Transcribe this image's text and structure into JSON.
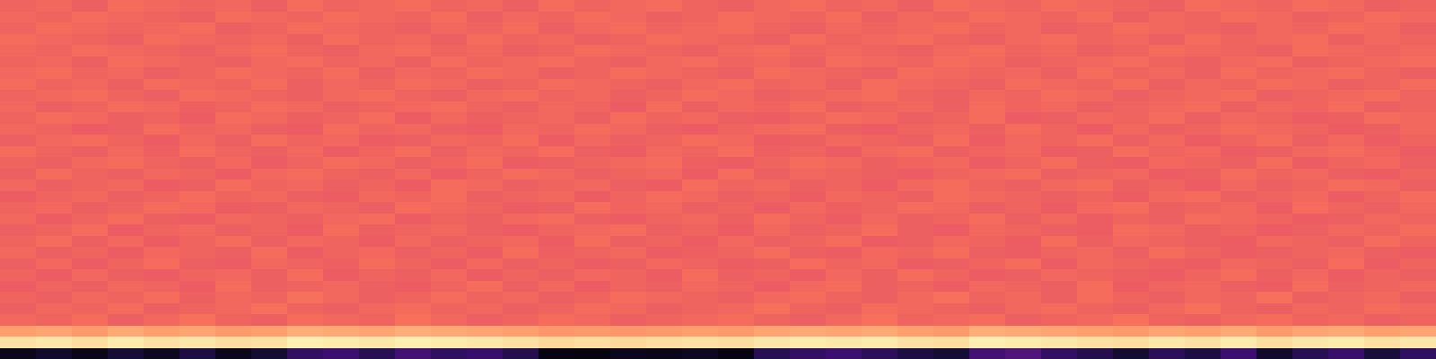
{
  "chart_data": {
    "type": "heatmap",
    "tick_labels": false,
    "zlim": [
      0,
      1
    ],
    "cells": [
      [
        0.05,
        0.08,
        0.04,
        0.1,
        0.06,
        0.12,
        0.05,
        0.09,
        0.18,
        0.2,
        0.15,
        0.22,
        0.17,
        0.19,
        0.14,
        0.03,
        0.02,
        0.05,
        0.04,
        0.06,
        0.03,
        0.15,
        0.18,
        0.2,
        0.16,
        0.12,
        0.1,
        0.22,
        0.25,
        0.18,
        0.14,
        0.09,
        0.16,
        0.12,
        0.2,
        0.08,
        0.15,
        0.19,
        0.11,
        0.17
      ],
      [
        0.94,
        0.95,
        0.93,
        0.96,
        0.94,
        0.95,
        0.93,
        0.94,
        0.97,
        0.96,
        0.95,
        0.97,
        0.96,
        0.95,
        0.94,
        0.92,
        0.93,
        0.92,
        0.93,
        0.94,
        0.93,
        0.95,
        0.96,
        0.95,
        0.96,
        0.94,
        0.93,
        0.97,
        0.96,
        0.95,
        0.94,
        0.93,
        0.95,
        0.94,
        0.96,
        0.93,
        0.95,
        0.96,
        0.94,
        0.95
      ],
      [
        0.8,
        0.81,
        0.79,
        0.82,
        0.8,
        0.81,
        0.79,
        0.8,
        0.83,
        0.82,
        0.81,
        0.83,
        0.82,
        0.81,
        0.8,
        0.78,
        0.79,
        0.78,
        0.79,
        0.8,
        0.79,
        0.81,
        0.82,
        0.81,
        0.82,
        0.8,
        0.79,
        0.83,
        0.82,
        0.81,
        0.8,
        0.79,
        0.81,
        0.8,
        0.82,
        0.79,
        0.81,
        0.82,
        0.8,
        0.81
      ],
      [
        0.68,
        0.67,
        0.69,
        0.66,
        0.68,
        0.7,
        0.67,
        0.66,
        0.69,
        0.68,
        0.67,
        0.7,
        0.68,
        0.66,
        0.67,
        0.69,
        0.68,
        0.66,
        0.67,
        0.68,
        0.69,
        0.67,
        0.66,
        0.68,
        0.7,
        0.67,
        0.68,
        0.69,
        0.66,
        0.67,
        0.68,
        0.7,
        0.67,
        0.66,
        0.68,
        0.69,
        0.67,
        0.68,
        0.66,
        0.67
      ],
      [
        0.66,
        0.68,
        0.67,
        0.69,
        0.66,
        0.67,
        0.68,
        0.7,
        0.67,
        0.66,
        0.68,
        0.69,
        0.67,
        0.68,
        0.66,
        0.67,
        0.69,
        0.68,
        0.66,
        0.67,
        0.68,
        0.7,
        0.67,
        0.66,
        0.69,
        0.68,
        0.67,
        0.66,
        0.68,
        0.69,
        0.67,
        0.66,
        0.68,
        0.7,
        0.67,
        0.66,
        0.68,
        0.67,
        0.69,
        0.68
      ],
      [
        0.67,
        0.66,
        0.68,
        0.67,
        0.69,
        0.66,
        0.68,
        0.67,
        0.7,
        0.68,
        0.66,
        0.67,
        0.69,
        0.67,
        0.68,
        0.66,
        0.67,
        0.69,
        0.68,
        0.67,
        0.66,
        0.68,
        0.69,
        0.67,
        0.66,
        0.68,
        0.7,
        0.67,
        0.68,
        0.66,
        0.69,
        0.67,
        0.66,
        0.68,
        0.67,
        0.7,
        0.66,
        0.67,
        0.68,
        0.66
      ],
      [
        0.65,
        0.67,
        0.66,
        0.68,
        0.67,
        0.65,
        0.69,
        0.66,
        0.67,
        0.68,
        0.66,
        0.65,
        0.67,
        0.69,
        0.66,
        0.68,
        0.65,
        0.67,
        0.66,
        0.68,
        0.67,
        0.65,
        0.68,
        0.69,
        0.66,
        0.67,
        0.65,
        0.68,
        0.67,
        0.66,
        0.69,
        0.65,
        0.67,
        0.68,
        0.66,
        0.65,
        0.69,
        0.66,
        0.67,
        0.68
      ],
      [
        0.67,
        0.65,
        0.68,
        0.66,
        0.65,
        0.67,
        0.68,
        0.66,
        0.69,
        0.65,
        0.67,
        0.66,
        0.68,
        0.65,
        0.67,
        0.66,
        0.68,
        0.67,
        0.65,
        0.69,
        0.66,
        0.67,
        0.65,
        0.68,
        0.66,
        0.69,
        0.67,
        0.65,
        0.66,
        0.68,
        0.67,
        0.66,
        0.65,
        0.67,
        0.69,
        0.66,
        0.68,
        0.65,
        0.67,
        0.66
      ],
      [
        0.66,
        0.68,
        0.65,
        0.67,
        0.69,
        0.66,
        0.65,
        0.68,
        0.67,
        0.66,
        0.69,
        0.67,
        0.65,
        0.68,
        0.66,
        0.67,
        0.65,
        0.66,
        0.68,
        0.67,
        0.65,
        0.66,
        0.69,
        0.67,
        0.68,
        0.65,
        0.66,
        0.67,
        0.69,
        0.65,
        0.68,
        0.67,
        0.66,
        0.65,
        0.68,
        0.67,
        0.66,
        0.69,
        0.65,
        0.67
      ],
      [
        0.68,
        0.66,
        0.67,
        0.65,
        0.68,
        0.67,
        0.66,
        0.69,
        0.65,
        0.67,
        0.68,
        0.66,
        0.67,
        0.65,
        0.69,
        0.66,
        0.67,
        0.68,
        0.65,
        0.66,
        0.67,
        0.69,
        0.66,
        0.65,
        0.68,
        0.67,
        0.69,
        0.66,
        0.65,
        0.67,
        0.68,
        0.66,
        0.69,
        0.67,
        0.65,
        0.66,
        0.67,
        0.68,
        0.66,
        0.65
      ],
      [
        0.67,
        0.69,
        0.66,
        0.68,
        0.65,
        0.67,
        0.69,
        0.66,
        0.68,
        0.67,
        0.65,
        0.68,
        0.66,
        0.67,
        0.68,
        0.65,
        0.69,
        0.66,
        0.67,
        0.65,
        0.68,
        0.66,
        0.67,
        0.69,
        0.65,
        0.66,
        0.68,
        0.67,
        0.65,
        0.69,
        0.66,
        0.68,
        0.67,
        0.66,
        0.65,
        0.68,
        0.67,
        0.66,
        0.69,
        0.67
      ],
      [
        0.66,
        0.67,
        0.69,
        0.65,
        0.67,
        0.68,
        0.66,
        0.67,
        0.65,
        0.69,
        0.66,
        0.67,
        0.68,
        0.66,
        0.65,
        0.67,
        0.68,
        0.69,
        0.66,
        0.67,
        0.65,
        0.68,
        0.66,
        0.67,
        0.69,
        0.66,
        0.65,
        0.68,
        0.67,
        0.66,
        0.65,
        0.69,
        0.68,
        0.66,
        0.67,
        0.65,
        0.66,
        0.68,
        0.67,
        0.69
      ],
      [
        0.68,
        0.65,
        0.67,
        0.69,
        0.66,
        0.65,
        0.68,
        0.67,
        0.66,
        0.68,
        0.69,
        0.65,
        0.67,
        0.66,
        0.68,
        0.69,
        0.66,
        0.65,
        0.67,
        0.68,
        0.66,
        0.69,
        0.67,
        0.65,
        0.68,
        0.66,
        0.67,
        0.69,
        0.66,
        0.68,
        0.65,
        0.67,
        0.66,
        0.69,
        0.68,
        0.67,
        0.65,
        0.66,
        0.68,
        0.67
      ],
      [
        0.67,
        0.68,
        0.66,
        0.67,
        0.69,
        0.68,
        0.65,
        0.66,
        0.68,
        0.67,
        0.66,
        0.69,
        0.68,
        0.67,
        0.65,
        0.66,
        0.69,
        0.67,
        0.68,
        0.66,
        0.67,
        0.65,
        0.68,
        0.66,
        0.67,
        0.69,
        0.68,
        0.66,
        0.67,
        0.65,
        0.68,
        0.69,
        0.66,
        0.67,
        0.68,
        0.65,
        0.69,
        0.67,
        0.66,
        0.68
      ],
      [
        0.65,
        0.67,
        0.68,
        0.66,
        0.67,
        0.69,
        0.67,
        0.68,
        0.66,
        0.65,
        0.68,
        0.67,
        0.69,
        0.66,
        0.67,
        0.68,
        0.65,
        0.67,
        0.69,
        0.68,
        0.66,
        0.67,
        0.65,
        0.68,
        0.67,
        0.66,
        0.69,
        0.68,
        0.67,
        0.66,
        0.67,
        0.65,
        0.68,
        0.69,
        0.66,
        0.67,
        0.68,
        0.65,
        0.67,
        0.69
      ],
      [
        0.68,
        0.66,
        0.67,
        0.68,
        0.65,
        0.66,
        0.69,
        0.67,
        0.68,
        0.66,
        0.67,
        0.65,
        0.69,
        0.68,
        0.66,
        0.67,
        0.68,
        0.66,
        0.65,
        0.69,
        0.67,
        0.68,
        0.66,
        0.67,
        0.65,
        0.68,
        0.69,
        0.67,
        0.66,
        0.68,
        0.69,
        0.66,
        0.67,
        0.65,
        0.68,
        0.66,
        0.67,
        0.69,
        0.68,
        0.66
      ],
      [
        0.66,
        0.69,
        0.67,
        0.66,
        0.68,
        0.67,
        0.65,
        0.68,
        0.69,
        0.67,
        0.66,
        0.68,
        0.65,
        0.67,
        0.69,
        0.68,
        0.66,
        0.67,
        0.68,
        0.65,
        0.69,
        0.66,
        0.68,
        0.67,
        0.66,
        0.65,
        0.67,
        0.68,
        0.69,
        0.66,
        0.67,
        0.68,
        0.65,
        0.66,
        0.69,
        0.67,
        0.68,
        0.66,
        0.65,
        0.67
      ],
      [
        0.67,
        0.66,
        0.68,
        0.69,
        0.67,
        0.66,
        0.68,
        0.65,
        0.67,
        0.69,
        0.68,
        0.66,
        0.67,
        0.69,
        0.65,
        0.66,
        0.67,
        0.68,
        0.69,
        0.66,
        0.65,
        0.67,
        0.69,
        0.68,
        0.66,
        0.67,
        0.68,
        0.65,
        0.67,
        0.69,
        0.66,
        0.65,
        0.68,
        0.67,
        0.66,
        0.69,
        0.65,
        0.67,
        0.68,
        0.66
      ],
      [
        0.69,
        0.67,
        0.66,
        0.68,
        0.66,
        0.69,
        0.67,
        0.66,
        0.68,
        0.65,
        0.67,
        0.69,
        0.66,
        0.68,
        0.67,
        0.69,
        0.66,
        0.65,
        0.68,
        0.67,
        0.69,
        0.66,
        0.67,
        0.65,
        0.68,
        0.69,
        0.66,
        0.67,
        0.68,
        0.65,
        0.66,
        0.69,
        0.67,
        0.68,
        0.65,
        0.66,
        0.68,
        0.69,
        0.67,
        0.65
      ],
      [
        0.66,
        0.68,
        0.69,
        0.67,
        0.65,
        0.68,
        0.66,
        0.69,
        0.67,
        0.68,
        0.65,
        0.66,
        0.68,
        0.67,
        0.69,
        0.65,
        0.68,
        0.66,
        0.67,
        0.69,
        0.68,
        0.65,
        0.66,
        0.68,
        0.67,
        0.66,
        0.69,
        0.65,
        0.68,
        0.67,
        0.69,
        0.66,
        0.68,
        0.65,
        0.67,
        0.69,
        0.66,
        0.68,
        0.65,
        0.67
      ],
      [
        0.68,
        0.67,
        0.65,
        0.66,
        0.69,
        0.67,
        0.68,
        0.66,
        0.65,
        0.69,
        0.67,
        0.68,
        0.66,
        0.65,
        0.68,
        0.67,
        0.69,
        0.68,
        0.66,
        0.65,
        0.67,
        0.68,
        0.69,
        0.66,
        0.65,
        0.67,
        0.68,
        0.66,
        0.69,
        0.67,
        0.65,
        0.68,
        0.66,
        0.67,
        0.69,
        0.68,
        0.67,
        0.65,
        0.66,
        0.68
      ],
      [
        0.67,
        0.69,
        0.68,
        0.66,
        0.67,
        0.65,
        0.69,
        0.68,
        0.66,
        0.67,
        0.69,
        0.65,
        0.68,
        0.66,
        0.67,
        0.68,
        0.66,
        0.69,
        0.67,
        0.68,
        0.66,
        0.65,
        0.67,
        0.69,
        0.68,
        0.66,
        0.67,
        0.69,
        0.65,
        0.66,
        0.68,
        0.67,
        0.69,
        0.66,
        0.68,
        0.67,
        0.65,
        0.66,
        0.69,
        0.68
      ],
      [
        0.68,
        0.66,
        0.67,
        0.69,
        0.68,
        0.66,
        0.67,
        0.69,
        0.68,
        0.66,
        0.67,
        0.68,
        0.69,
        0.67,
        0.66,
        0.68,
        0.67,
        0.65,
        0.69,
        0.66,
        0.68,
        0.67,
        0.69,
        0.66,
        0.67,
        0.68,
        0.66,
        0.69,
        0.67,
        0.68,
        0.66,
        0.67,
        0.68,
        0.69,
        0.66,
        0.68,
        0.67,
        0.69,
        0.66,
        0.67
      ],
      [
        0.67,
        0.68,
        0.69,
        0.67,
        0.66,
        0.69,
        0.68,
        0.67,
        0.66,
        0.68,
        0.69,
        0.67,
        0.66,
        0.68,
        0.69,
        0.67,
        0.68,
        0.66,
        0.67,
        0.69,
        0.68,
        0.66,
        0.67,
        0.68,
        0.69,
        0.67,
        0.66,
        0.68,
        0.67,
        0.69,
        0.68,
        0.66,
        0.67,
        0.68,
        0.69,
        0.66,
        0.67,
        0.68,
        0.69,
        0.67
      ],
      [
        0.69,
        0.67,
        0.68,
        0.66,
        0.69,
        0.68,
        0.67,
        0.69,
        0.66,
        0.68,
        0.67,
        0.69,
        0.68,
        0.66,
        0.67,
        0.69,
        0.68,
        0.67,
        0.66,
        0.68,
        0.69,
        0.67,
        0.68,
        0.66,
        0.69,
        0.68,
        0.67,
        0.66,
        0.69,
        0.68,
        0.67,
        0.69,
        0.66,
        0.68,
        0.67,
        0.69,
        0.68,
        0.66,
        0.67,
        0.69
      ],
      [
        0.68,
        0.69,
        0.67,
        0.68,
        0.66,
        0.67,
        0.69,
        0.68,
        0.67,
        0.69,
        0.66,
        0.68,
        0.67,
        0.69,
        0.68,
        0.66,
        0.67,
        0.69,
        0.68,
        0.67,
        0.66,
        0.69,
        0.68,
        0.67,
        0.66,
        0.69,
        0.68,
        0.67,
        0.68,
        0.66,
        0.69,
        0.67,
        0.68,
        0.66,
        0.69,
        0.67,
        0.68,
        0.69,
        0.67,
        0.66
      ],
      [
        0.67,
        0.68,
        0.66,
        0.69,
        0.68,
        0.67,
        0.66,
        0.68,
        0.69,
        0.67,
        0.68,
        0.66,
        0.69,
        0.67,
        0.68,
        0.69,
        0.67,
        0.66,
        0.68,
        0.69,
        0.67,
        0.68,
        0.66,
        0.69,
        0.68,
        0.67,
        0.69,
        0.68,
        0.66,
        0.67,
        0.68,
        0.69,
        0.67,
        0.66,
        0.68,
        0.69,
        0.66,
        0.67,
        0.68,
        0.69
      ],
      [
        0.68,
        0.67,
        0.69,
        0.68,
        0.67,
        0.66,
        0.68,
        0.69,
        0.67,
        0.66,
        0.68,
        0.69,
        0.67,
        0.68,
        0.66,
        0.67,
        0.69,
        0.68,
        0.67,
        0.66,
        0.68,
        0.69,
        0.67,
        0.68,
        0.67,
        0.66,
        0.68,
        0.69,
        0.67,
        0.68,
        0.66,
        0.67,
        0.69,
        0.68,
        0.67,
        0.66,
        0.69,
        0.68,
        0.67,
        0.68
      ],
      [
        0.69,
        0.68,
        0.67,
        0.66,
        0.69,
        0.68,
        0.67,
        0.68,
        0.66,
        0.69,
        0.67,
        0.68,
        0.66,
        0.69,
        0.67,
        0.68,
        0.66,
        0.67,
        0.69,
        0.68,
        0.67,
        0.66,
        0.69,
        0.67,
        0.68,
        0.69,
        0.67,
        0.66,
        0.68,
        0.69,
        0.67,
        0.68,
        0.66,
        0.69,
        0.67,
        0.68,
        0.69,
        0.66,
        0.68,
        0.67
      ],
      [
        0.67,
        0.69,
        0.68,
        0.67,
        0.68,
        0.69,
        0.66,
        0.67,
        0.69,
        0.68,
        0.67,
        0.66,
        0.68,
        0.67,
        0.69,
        0.66,
        0.68,
        0.69,
        0.67,
        0.68,
        0.69,
        0.67,
        0.66,
        0.68,
        0.67,
        0.68,
        0.69,
        0.67,
        0.68,
        0.66,
        0.67,
        0.69,
        0.68,
        0.67,
        0.66,
        0.68,
        0.67,
        0.69,
        0.68,
        0.66
      ],
      [
        0.68,
        0.67,
        0.69,
        0.68,
        0.67,
        0.66,
        0.69,
        0.68,
        0.67,
        0.69,
        0.68,
        0.67,
        0.69,
        0.66,
        0.68,
        0.67,
        0.69,
        0.68,
        0.66,
        0.67,
        0.69,
        0.68,
        0.67,
        0.69,
        0.66,
        0.68,
        0.67,
        0.69,
        0.68,
        0.67,
        0.69,
        0.66,
        0.68,
        0.67,
        0.69,
        0.68,
        0.66,
        0.67,
        0.69,
        0.68
      ],
      [
        0.67,
        0.68,
        0.66,
        0.69,
        0.68,
        0.67,
        0.68,
        0.66,
        0.69,
        0.67,
        0.68,
        0.69,
        0.67,
        0.68,
        0.66,
        0.69,
        0.67,
        0.68,
        0.69,
        0.67,
        0.66,
        0.68,
        0.69,
        0.67,
        0.68,
        0.66,
        0.69,
        0.68,
        0.67,
        0.69,
        0.68,
        0.67,
        0.66,
        0.69,
        0.68,
        0.67,
        0.69,
        0.68,
        0.66,
        0.67
      ]
    ]
  }
}
